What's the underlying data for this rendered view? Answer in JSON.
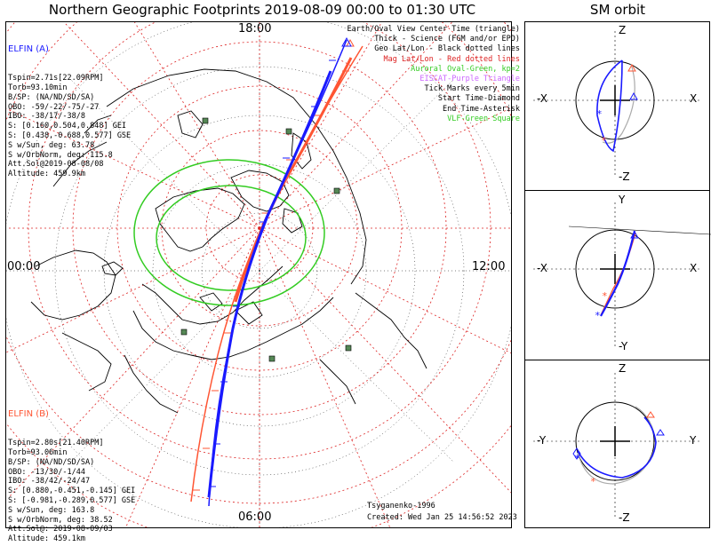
{
  "title": "Northern Geographic Footprints 2019-08-09 00:00 to 01:30 UTC",
  "sm_orbit_title": "SM orbit",
  "colors": {
    "elfin_a": "#1a1aff",
    "elfin_b": "#ff5533",
    "geo_grid": "#000000",
    "mag_grid": "#dd2222",
    "auroral": "#33cc22",
    "eiscat": "#cc66ff",
    "vlf": "#558855",
    "sm_gray": "#aaaaaa"
  },
  "elfin_a": {
    "header": "ELFIN (A)",
    "lines": [
      "Tspin=2.71s[22.09RPM]",
      "Torb=93.10min",
      "B/SP: (NA/ND/SD/SA)",
      "OBO: -59/-22/-75/-27",
      "IBO: -38/17/-38/8",
      "S: [0.160,0.504,0.848] GEI",
      "S: [0.438,-0.688,0.577] GSE",
      "S w/Sun, deg: 63.78",
      "S w/OrbNorm, deg: 115.8",
      "Att.Sol@2019-08-08/08",
      "Altitude: 459.9km"
    ]
  },
  "elfin_b": {
    "header": "ELFIN (B)",
    "lines": [
      "Tspin=2.80s[21.40RPM]",
      "Torb=93.06min",
      "B/SP: (NA/ND/SD/SA)",
      "OBO: -13/30/-1/44",
      "IBO: -38/42/-24/47",
      "S: [0.880,-0.451,-0.145] GEI",
      "S: [-0.981,-0.289,0.577] GSE",
      "S w/Sun, deg: 163.8",
      "S w/OrbNorm, deg: 38.52",
      "Att.Sol@: 2019-08-09/03",
      "Altitude: 459.1km"
    ]
  },
  "legend": {
    "items": [
      {
        "text": "Earth/Oval View Center Time (triangle)",
        "color": "#000000"
      },
      {
        "text": "Thick - Science (FGM and/or EPD)",
        "color": "#000000"
      },
      {
        "text": "Geo Lat/Lon - Black dotted lines",
        "color": "#000000"
      },
      {
        "text": "Mag Lat/Lon - Red dotted lines",
        "color": "#dd2222"
      },
      {
        "text": "Auroral Oval-Green, kp=2",
        "color": "#33cc22"
      },
      {
        "text": "EISCAT-Purple Triangle",
        "color": "#cc66ff"
      },
      {
        "text": "Tick Marks every 5min",
        "color": "#000000"
      },
      {
        "text": "Start Time-Diamond",
        "color": "#000000"
      },
      {
        "text": "End Time-Asterisk",
        "color": "#000000"
      },
      {
        "text": "VLF-Green Square",
        "color": "#33cc22"
      }
    ]
  },
  "time_labels": {
    "top": "18:00",
    "left": "00:00",
    "right": "12:00",
    "bottom": "06:00"
  },
  "credit": {
    "author": "Tsyganenko-1996",
    "created": "Created: Wed Jan 25 14:56:52 2023"
  },
  "sm_panels": {
    "p1": {
      "top": "Z",
      "bottom": "-Z",
      "left": "-X",
      "right": "X"
    },
    "p2": {
      "top": "Y",
      "bottom": "-Y",
      "left": "-X",
      "right": "X"
    },
    "p3": {
      "top": "Z",
      "bottom": "-Z",
      "left": "-Y",
      "right": "Y"
    }
  }
}
